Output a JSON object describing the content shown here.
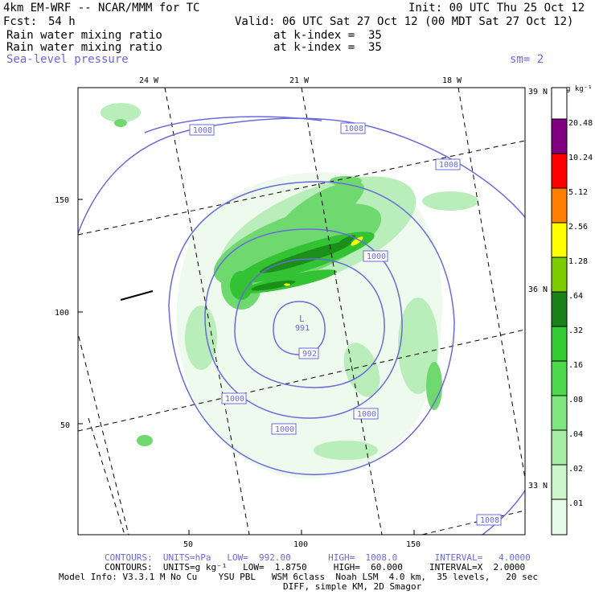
{
  "header": {
    "model_title": "4km EM-WRF -- NCAR/MMM for TC",
    "init": "Init: 00 UTC Thu 25 Oct 12",
    "fcst_label": "Fcst:",
    "fcst_value": "54 h",
    "valid": "Valid: 06 UTC Sat 27 Oct 12 (00 MDT Sat 27 Oct 12)",
    "field1_name": "Rain water mixing ratio",
    "field1_level": "at k-index =  35",
    "field2_name": "Rain water mixing ratio",
    "field2_level": "at k-index =  35",
    "field3_name": "Sea-level pressure",
    "smoothing": "sm= 2"
  },
  "map": {
    "lon_labels": [
      "24 W",
      "21 W",
      "18 W"
    ],
    "lat_labels": [
      "39 N",
      "36 N",
      "33 N"
    ],
    "grid_y_ticks": [
      "150",
      "100",
      "50"
    ],
    "grid_x_ticks": [
      "50",
      "100",
      "150"
    ],
    "low_center": {
      "symbol": "L",
      "value": "991"
    },
    "contour_labels": [
      "1008",
      "1008",
      "1008",
      "1000",
      "992",
      "1000",
      "1000",
      "1000",
      "1008"
    ],
    "contour_color": "#6a6add",
    "rain_colors": [
      "#d9f5d9",
      "#b3ebb3",
      "#8de08d",
      "#5ccf5c",
      "#2fbf2f",
      "#1a8f1a"
    ]
  },
  "colorbar": {
    "units": "g kg⁻¹",
    "levels": [
      "20.48",
      "10.24",
      "5.12",
      "2.56",
      "1.28",
      ".64",
      ".32",
      ".16",
      ".08",
      ".04",
      ".02",
      ".01"
    ],
    "colors": [
      "#800080",
      "#ff0000",
      "#ff8000",
      "#ffff00",
      "#7ccc00",
      "#1a801a",
      "#33cc33",
      "#4cd94c",
      "#80e680",
      "#a6eda6",
      "#ccf5cc",
      "#e8fbe8",
      "#ffffff"
    ]
  },
  "footer": {
    "line1": "CONTOURS:  UNITS=hPa   LOW=  992.00       HIGH=  1008.0       INTERVAL=   4.0000",
    "line2": "CONTOURS:  UNITS=g kg⁻¹   LOW=  1.8750     HIGH=  60.000     INTERVAL=X  2.0000",
    "line3": "Model Info: V3.3.1 M No Cu    YSU PBL   WSM 6class  Noah LSM  4.0 km,  35 levels,   20 sec",
    "line4": "DIFF, simple KM, 2D Smagor"
  }
}
